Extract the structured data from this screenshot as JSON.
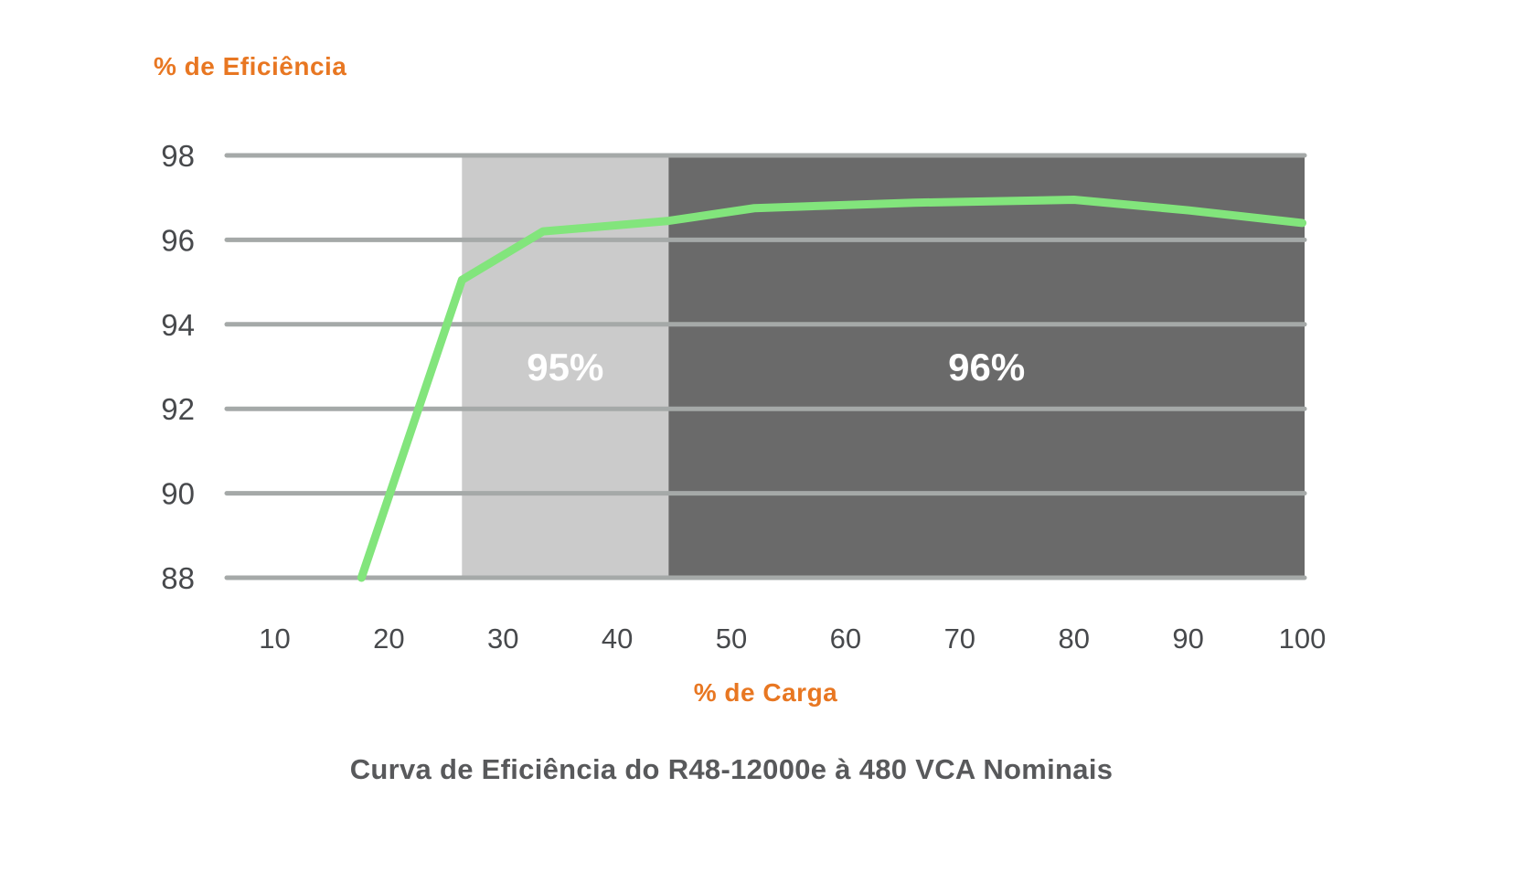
{
  "chart_data": {
    "type": "line",
    "title": "Curva de Eficiência do R48-12000e à 480 VCA Nominais",
    "xlabel": "% de Carga",
    "ylabel": "% de Eficiência",
    "x_ticks": [
      10,
      20,
      30,
      40,
      50,
      60,
      70,
      80,
      90,
      100
    ],
    "y_ticks": [
      88,
      90,
      92,
      94,
      96,
      98
    ],
    "xlim": [
      5.8,
      100.2
    ],
    "ylim": [
      88,
      98
    ],
    "grid": "horizontal-only",
    "legend": "none",
    "series": [
      {
        "name": "eficiencia",
        "color": "#82e57c",
        "points": [
          [
            17.6,
            88.0
          ],
          [
            26.4,
            95.05
          ],
          [
            33.5,
            96.2
          ],
          [
            44.5,
            96.45
          ],
          [
            52,
            96.75
          ],
          [
            66,
            96.88
          ],
          [
            80,
            96.95
          ],
          [
            90,
            96.7
          ],
          [
            100,
            96.4
          ]
        ]
      }
    ],
    "regions": [
      {
        "label": "95%",
        "x_start": 26.4,
        "x_end": 44.5,
        "fill": "#cbcbcb",
        "label_color": "#ffffff"
      },
      {
        "label": "96%",
        "x_start": 44.5,
        "x_end": 100.2,
        "fill": "#6a6a6a",
        "label_color": "#ffffff"
      }
    ],
    "colors": {
      "axis_label": "#e87722",
      "tick_label": "#47494c",
      "gridline": "#a5a9a8",
      "title": "#58595b",
      "background": "#ffffff"
    }
  }
}
